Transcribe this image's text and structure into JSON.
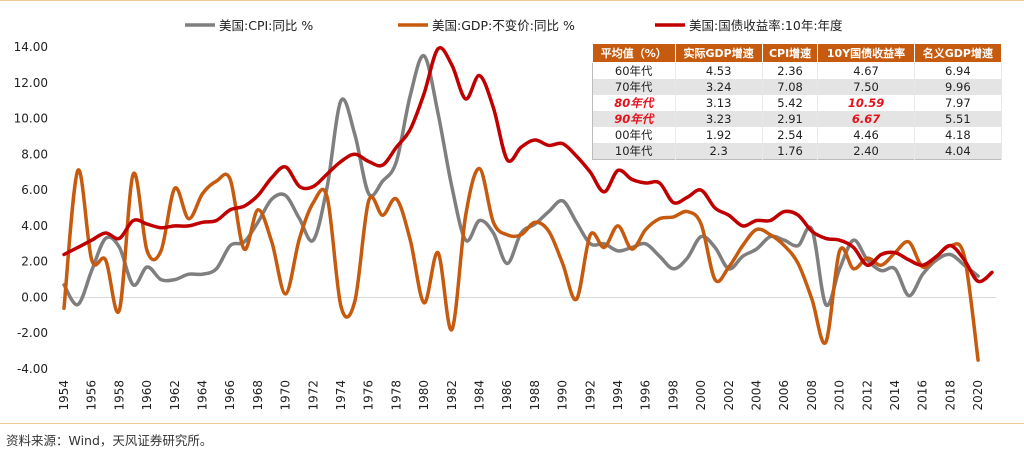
{
  "chart_data": {
    "type": "line",
    "title": "",
    "xlabel": "",
    "ylabel": "",
    "ylim": [
      -4,
      14
    ],
    "xlim": [
      1954,
      2021
    ],
    "y_ticks": [
      "14.00",
      "12.00",
      "10.00",
      "8.00",
      "6.00",
      "4.00",
      "2.00",
      "0.00",
      "-2.00",
      "-4.00"
    ],
    "x_ticks": [
      "1954",
      "1956",
      "1958",
      "1960",
      "1962",
      "1964",
      "1966",
      "1968",
      "1970",
      "1972",
      "1974",
      "1976",
      "1978",
      "1980",
      "1982",
      "1984",
      "1986",
      "1988",
      "1990",
      "1992",
      "1994",
      "1996",
      "1998",
      "2000",
      "2002",
      "2004",
      "2006",
      "2008",
      "2010",
      "2012",
      "2014",
      "2016",
      "2018",
      "2020"
    ],
    "legend_position": "top",
    "grid": false,
    "series": [
      {
        "name": "美国:CPI:同比 %",
        "color": "#7f7f7f",
        "x": [
          1954,
          1955,
          1956,
          1957,
          1958,
          1959,
          1960,
          1961,
          1962,
          1963,
          1964,
          1965,
          1966,
          1967,
          1968,
          1969,
          1970,
          1971,
          1972,
          1973,
          1974,
          1975,
          1976,
          1977,
          1978,
          1979,
          1980,
          1981,
          1982,
          1983,
          1984,
          1985,
          1986,
          1987,
          1988,
          1989,
          1990,
          1991,
          1992,
          1993,
          1994,
          1995,
          1996,
          1997,
          1998,
          1999,
          2000,
          2001,
          2002,
          2003,
          2004,
          2005,
          2006,
          2007,
          2008,
          2009,
          2010,
          2011,
          2012,
          2013,
          2014,
          2015,
          2016,
          2017,
          2018,
          2019,
          2020
        ],
        "values": [
          0.7,
          -0.4,
          1.5,
          3.3,
          2.8,
          0.7,
          1.7,
          1.0,
          1.0,
          1.3,
          1.3,
          1.6,
          2.9,
          3.1,
          4.2,
          5.5,
          5.7,
          4.4,
          3.2,
          6.2,
          11.0,
          9.1,
          5.8,
          6.5,
          7.6,
          11.3,
          13.5,
          10.3,
          6.2,
          3.2,
          4.3,
          3.6,
          1.9,
          3.6,
          4.1,
          4.8,
          5.4,
          4.2,
          3.0,
          3.0,
          2.6,
          2.8,
          3.0,
          2.3,
          1.6,
          2.2,
          3.4,
          2.8,
          1.6,
          2.3,
          2.7,
          3.4,
          3.2,
          2.9,
          3.8,
          -0.4,
          1.6,
          3.2,
          2.1,
          1.5,
          1.6,
          0.1,
          1.3,
          2.1,
          2.4,
          1.8,
          1.2
        ]
      },
      {
        "name": "美国:GDP:不变价:同比 %",
        "color": "#c65a0e",
        "x": [
          1954,
          1955,
          1956,
          1957,
          1958,
          1959,
          1960,
          1961,
          1962,
          1963,
          1964,
          1965,
          1966,
          1967,
          1968,
          1969,
          1970,
          1971,
          1972,
          1973,
          1974,
          1975,
          1976,
          1977,
          1978,
          1979,
          1980,
          1981,
          1982,
          1983,
          1984,
          1985,
          1986,
          1987,
          1988,
          1989,
          1990,
          1991,
          1992,
          1993,
          1994,
          1995,
          1996,
          1997,
          1998,
          1999,
          2000,
          2001,
          2002,
          2003,
          2004,
          2005,
          2006,
          2007,
          2008,
          2009,
          2010,
          2011,
          2012,
          2013,
          2014,
          2015,
          2016,
          2017,
          2018,
          2019,
          2020
        ],
        "values": [
          -0.6,
          7.1,
          2.1,
          2.1,
          -0.7,
          6.9,
          2.6,
          2.6,
          6.1,
          4.4,
          5.8,
          6.5,
          6.6,
          2.7,
          4.9,
          3.1,
          0.2,
          3.3,
          5.3,
          5.6,
          -0.5,
          -0.2,
          5.4,
          4.6,
          5.5,
          3.2,
          -0.3,
          2.5,
          -1.8,
          4.6,
          7.2,
          4.2,
          3.5,
          3.5,
          4.2,
          3.7,
          1.9,
          -0.1,
          3.5,
          2.8,
          4.0,
          2.7,
          3.8,
          4.4,
          4.5,
          4.8,
          4.1,
          1.0,
          1.7,
          2.9,
          3.8,
          3.5,
          2.9,
          1.9,
          -0.1,
          -2.5,
          2.6,
          1.6,
          2.2,
          1.8,
          2.5,
          3.1,
          1.7,
          2.3,
          2.9,
          2.3,
          -3.5
        ]
      },
      {
        "name": "美国:国债收益率:10年:年度",
        "color": "#c00000",
        "x": [
          1954,
          1955,
          1956,
          1957,
          1958,
          1959,
          1960,
          1961,
          1962,
          1963,
          1964,
          1965,
          1966,
          1967,
          1968,
          1969,
          1970,
          1971,
          1972,
          1973,
          1974,
          1975,
          1976,
          1977,
          1978,
          1979,
          1980,
          1981,
          1982,
          1983,
          1984,
          1985,
          1986,
          1987,
          1988,
          1989,
          1990,
          1991,
          1992,
          1993,
          1994,
          1995,
          1996,
          1997,
          1998,
          1999,
          2000,
          2001,
          2002,
          2003,
          2004,
          2005,
          2006,
          2007,
          2008,
          2009,
          2010,
          2011,
          2012,
          2013,
          2014,
          2015,
          2016,
          2017,
          2018,
          2019,
          2020,
          2021
        ],
        "values": [
          2.4,
          2.8,
          3.2,
          3.6,
          3.3,
          4.3,
          4.1,
          3.9,
          4.0,
          4.0,
          4.2,
          4.3,
          4.9,
          5.1,
          5.7,
          6.7,
          7.3,
          6.2,
          6.2,
          6.9,
          7.6,
          8.0,
          7.6,
          7.4,
          8.4,
          9.4,
          11.4,
          13.9,
          13.0,
          11.1,
          12.4,
          10.6,
          7.7,
          8.4,
          8.8,
          8.5,
          8.6,
          7.9,
          7.0,
          5.9,
          7.1,
          6.6,
          6.4,
          6.4,
          5.3,
          5.6,
          6.0,
          5.0,
          4.6,
          4.0,
          4.3,
          4.3,
          4.8,
          4.6,
          3.7,
          3.3,
          3.2,
          2.8,
          1.8,
          2.4,
          2.5,
          2.1,
          1.8,
          2.3,
          2.9,
          2.1,
          0.9,
          1.4
        ]
      }
    ]
  },
  "table": {
    "headers": [
      "平均值（%）",
      "实际GDP增速",
      "CPI增速",
      "10Y国债收益率",
      "名义GDP增速"
    ],
    "rows": [
      [
        "60年代",
        "4.53",
        "2.36",
        "4.67",
        "6.94"
      ],
      [
        "70年代",
        "3.24",
        "7.08",
        "7.50",
        "9.96"
      ],
      [
        "80年代",
        "3.13",
        "5.42",
        "10.59",
        "7.97"
      ],
      [
        "90年代",
        "3.23",
        "2.91",
        "6.67",
        "5.51"
      ],
      [
        "00年代",
        "1.92",
        "2.54",
        "4.46",
        "4.18"
      ],
      [
        "10年代",
        "2.3",
        "1.76",
        "2.40",
        "4.04"
      ]
    ],
    "highlight_color": "#e3121b"
  },
  "source_note": "资料来源：Wind，天风证券研究所。"
}
